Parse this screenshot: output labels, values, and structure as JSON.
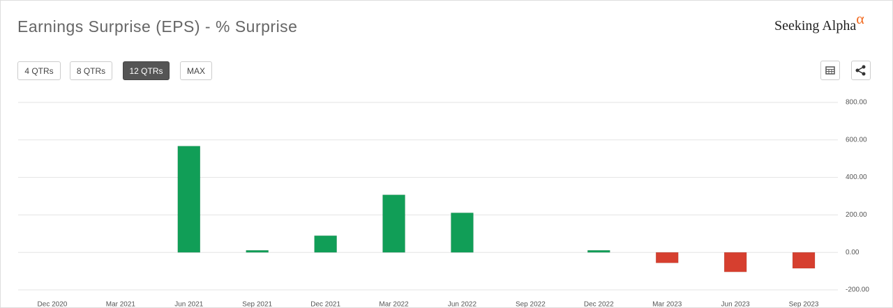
{
  "brand": {
    "name": "Seeking Alpha",
    "symbol": "α"
  },
  "controls": [
    "4 QTRs",
    "8 QTRs",
    "12 QTRs",
    "MAX"
  ],
  "selected_control": 2,
  "chart_data": {
    "type": "bar",
    "title": "Earnings Surprise (EPS) - % Surprise",
    "categories": [
      "Dec 2020",
      "Mar 2021",
      "Jun 2021",
      "Sep 2021",
      "Dec 2021",
      "Mar 2022",
      "Jun 2022",
      "Sep 2022",
      "Dec 2022",
      "Mar 2023",
      "Jun 2023",
      "Sep 2023"
    ],
    "values": [
      null,
      null,
      567,
      11,
      89,
      307,
      211,
      null,
      11,
      -56,
      -104,
      -85
    ],
    "positive_color": "#119e57",
    "negative_color": "#d63f2f",
    "ylim": [
      -200,
      800
    ],
    "yticks": [
      {
        "value": -200,
        "label": "-200.00"
      },
      {
        "value": 0,
        "label": "0.00"
      },
      {
        "value": 200,
        "label": "200.00"
      },
      {
        "value": 400,
        "label": "400.00"
      },
      {
        "value": 600,
        "label": "600.00"
      },
      {
        "value": 800,
        "label": "800.00"
      }
    ],
    "grid": true
  }
}
